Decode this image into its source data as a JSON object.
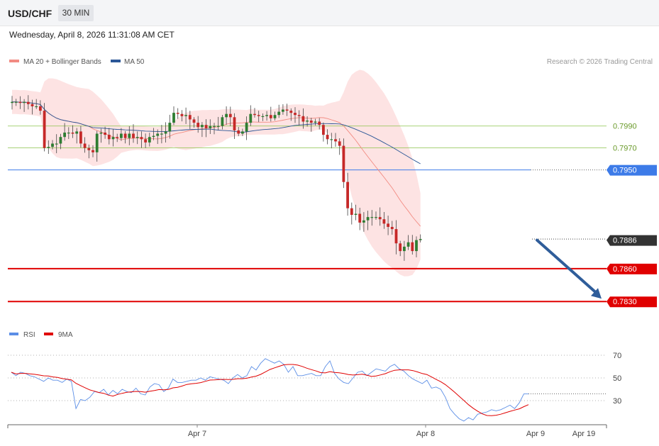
{
  "header": {
    "symbol": "USD/CHF",
    "timeframe": "30 MIN"
  },
  "datetime": "Wednesday, April 8, 2026 11:31:08 AM CET",
  "credit": "Research © 2026 Trading Central",
  "colors": {
    "up": "#2e7d32",
    "down": "#c62828",
    "bollinger_fill": "#fde3e3",
    "ma20": "#f28b82",
    "ma50": "#2b5797",
    "support": "#e00000",
    "pivot": "#3d7be8",
    "target_green": "#8bc34a",
    "last_tag": "#333333",
    "arrow": "#2f5d9a",
    "rsi": "#5b8ee6",
    "rsi_ma": "#e00000"
  },
  "chart_data": [
    {
      "type": "candlestick",
      "legend": [
        "MA 20 + Bollinger Bands",
        "MA 50"
      ],
      "ylim": [
        0.7814,
        0.8037
      ],
      "x_labels": [
        "Apr 7",
        "Apr 8",
        "Apr 9",
        "Apr 19"
      ],
      "horizontal_levels": [
        {
          "label": "0.7990",
          "value": 0.799,
          "style": "green"
        },
        {
          "label": "0.7970",
          "value": 0.797,
          "style": "green"
        },
        {
          "label": "0.7950",
          "value": 0.795,
          "style": "pivot"
        },
        {
          "label": "0.7886",
          "value": 0.7886,
          "style": "last"
        },
        {
          "label": "0.7860",
          "value": 0.786,
          "style": "support"
        },
        {
          "label": "0.7830",
          "value": 0.783,
          "style": "support"
        }
      ],
      "forecast_arrow": {
        "from": 0.7886,
        "to": 0.783
      },
      "closes": [
        0.8012,
        0.8012,
        0.8011,
        0.8012,
        0.801,
        0.8008,
        0.8008,
        0.8004,
        0.797,
        0.7971,
        0.7974,
        0.7974,
        0.798,
        0.7984,
        0.7984,
        0.7983,
        0.7985,
        0.7974,
        0.797,
        0.7968,
        0.7966,
        0.7983,
        0.7984,
        0.7982,
        0.7978,
        0.798,
        0.7979,
        0.7983,
        0.7979,
        0.7983,
        0.7979,
        0.798,
        0.7978,
        0.7975,
        0.798,
        0.7981,
        0.7983,
        0.7983,
        0.7985,
        0.7993,
        0.8002,
        0.8001,
        0.7999,
        0.8,
        0.7996,
        0.7993,
        0.7989,
        0.7991,
        0.7988,
        0.799,
        0.799,
        0.799,
        0.7998,
        0.8001,
        0.7998,
        0.7986,
        0.7983,
        0.7985,
        0.7993,
        0.8001,
        0.8,
        0.7999,
        0.7999,
        0.8,
        0.7997,
        0.8,
        0.8003,
        0.8005,
        0.8004,
        0.8002,
        0.8,
        0.7999,
        0.7994,
        0.7995,
        0.7993,
        0.7994,
        0.7991,
        0.7982,
        0.7978,
        0.7978,
        0.7976,
        0.7972,
        0.7939,
        0.7915,
        0.7909,
        0.791,
        0.7902,
        0.7904,
        0.7907,
        0.7907,
        0.7907,
        0.7905,
        0.7901,
        0.7898,
        0.7896,
        0.7883,
        0.7876,
        0.788,
        0.7884,
        0.7876,
        0.7886,
        0.7887
      ]
    },
    {
      "type": "line",
      "series": [
        {
          "name": "RSI"
        },
        {
          "name": "9MA"
        }
      ],
      "ylim": [
        10,
        80
      ],
      "yticks": [
        70,
        50,
        30
      ],
      "rsi": [
        55,
        52,
        55,
        54,
        52,
        51,
        49,
        47,
        50,
        48,
        48,
        46,
        49,
        47,
        23,
        31,
        30,
        33,
        38,
        37,
        40,
        35,
        39,
        36,
        40,
        38,
        37,
        41,
        36,
        35,
        42,
        45,
        44,
        38,
        41,
        49,
        46,
        46,
        47,
        48,
        48,
        50,
        48,
        51,
        50,
        49,
        48,
        45,
        50,
        53,
        50,
        52,
        60,
        57,
        63,
        67,
        65,
        63,
        65,
        62,
        55,
        60,
        52,
        52,
        53,
        54,
        52,
        52,
        60,
        65,
        54,
        49,
        46,
        45,
        50,
        55,
        56,
        52,
        55,
        58,
        57,
        56,
        60,
        62,
        58,
        56,
        52,
        49,
        47,
        45,
        48,
        41,
        42,
        40,
        33,
        23,
        18,
        14,
        12,
        15,
        13,
        18,
        19,
        20,
        22,
        21,
        22,
        24,
        26,
        23,
        28,
        36,
        36
      ]
    }
  ]
}
